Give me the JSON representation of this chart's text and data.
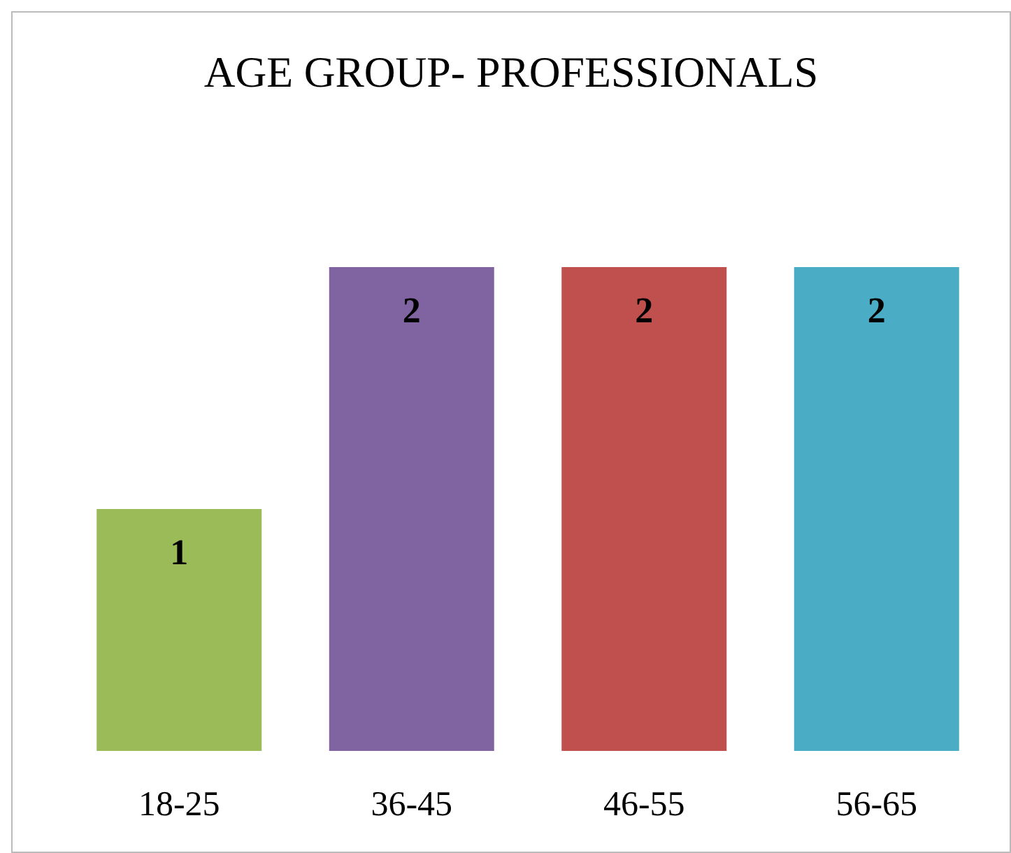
{
  "chart_data": {
    "type": "bar",
    "title": "AGE GROUP- PROFESSIONALS",
    "categories": [
      "18-25",
      "36-45",
      "46-55",
      "56-65"
    ],
    "values": [
      1,
      2,
      2,
      2
    ],
    "colors": [
      "#9bbb59",
      "#8064a2",
      "#c0504d",
      "#4bacc6"
    ],
    "data_labels": true
  }
}
